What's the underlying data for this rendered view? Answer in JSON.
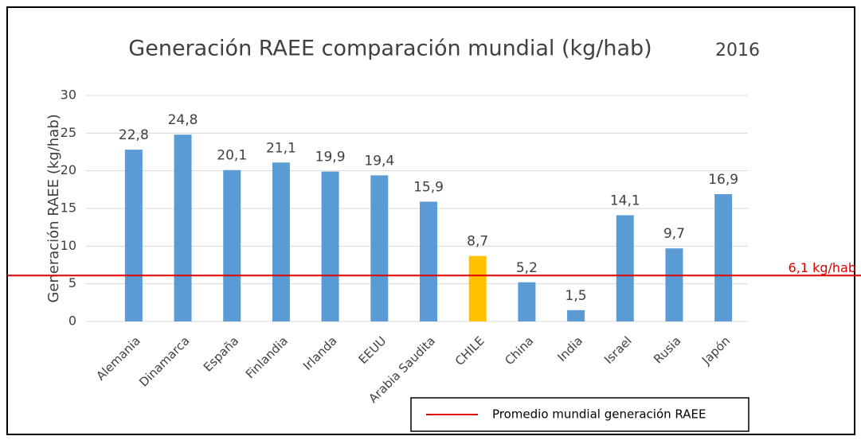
{
  "chart_data": {
    "type": "bar",
    "title": "Generación RAEE comparación mundial (kg/hab)",
    "title_year": "2016",
    "y_label": "Generación RAEE (kg/hab)",
    "categories": [
      "Alemania",
      "Dinamarca",
      "España",
      "Finlandia",
      "Irlanda",
      "EEUU",
      "Arabia Saudita",
      "CHILE",
      "China",
      "India",
      "Israel",
      "Rusia",
      "Japón"
    ],
    "values": [
      22.8,
      24.8,
      20.1,
      21.1,
      19.9,
      19.4,
      15.9,
      8.7,
      5.2,
      1.5,
      14.1,
      9.7,
      16.9
    ],
    "value_labels": [
      "22,8",
      "24,8",
      "20,1",
      "21,1",
      "19,9",
      "19,4",
      "15,9",
      "8,7",
      "5,2",
      "1,5",
      "14,1",
      "9,7",
      "16,9"
    ],
    "colors": [
      "#5b9bd5",
      "#5b9bd5",
      "#5b9bd5",
      "#5b9bd5",
      "#5b9bd5",
      "#5b9bd5",
      "#5b9bd5",
      "#ffc000",
      "#5b9bd5",
      "#5b9bd5",
      "#5b9bd5",
      "#5b9bd5",
      "#5b9bd5"
    ],
    "ylim": [
      0,
      30
    ],
    "yticks": [
      0,
      5,
      10,
      15,
      20,
      25,
      30
    ],
    "grid": true,
    "reference_line": {
      "value": 6.1,
      "label": "6,1 kg/hab",
      "name": "Promedio mundial generación RAEE",
      "color": "#e00000"
    }
  }
}
